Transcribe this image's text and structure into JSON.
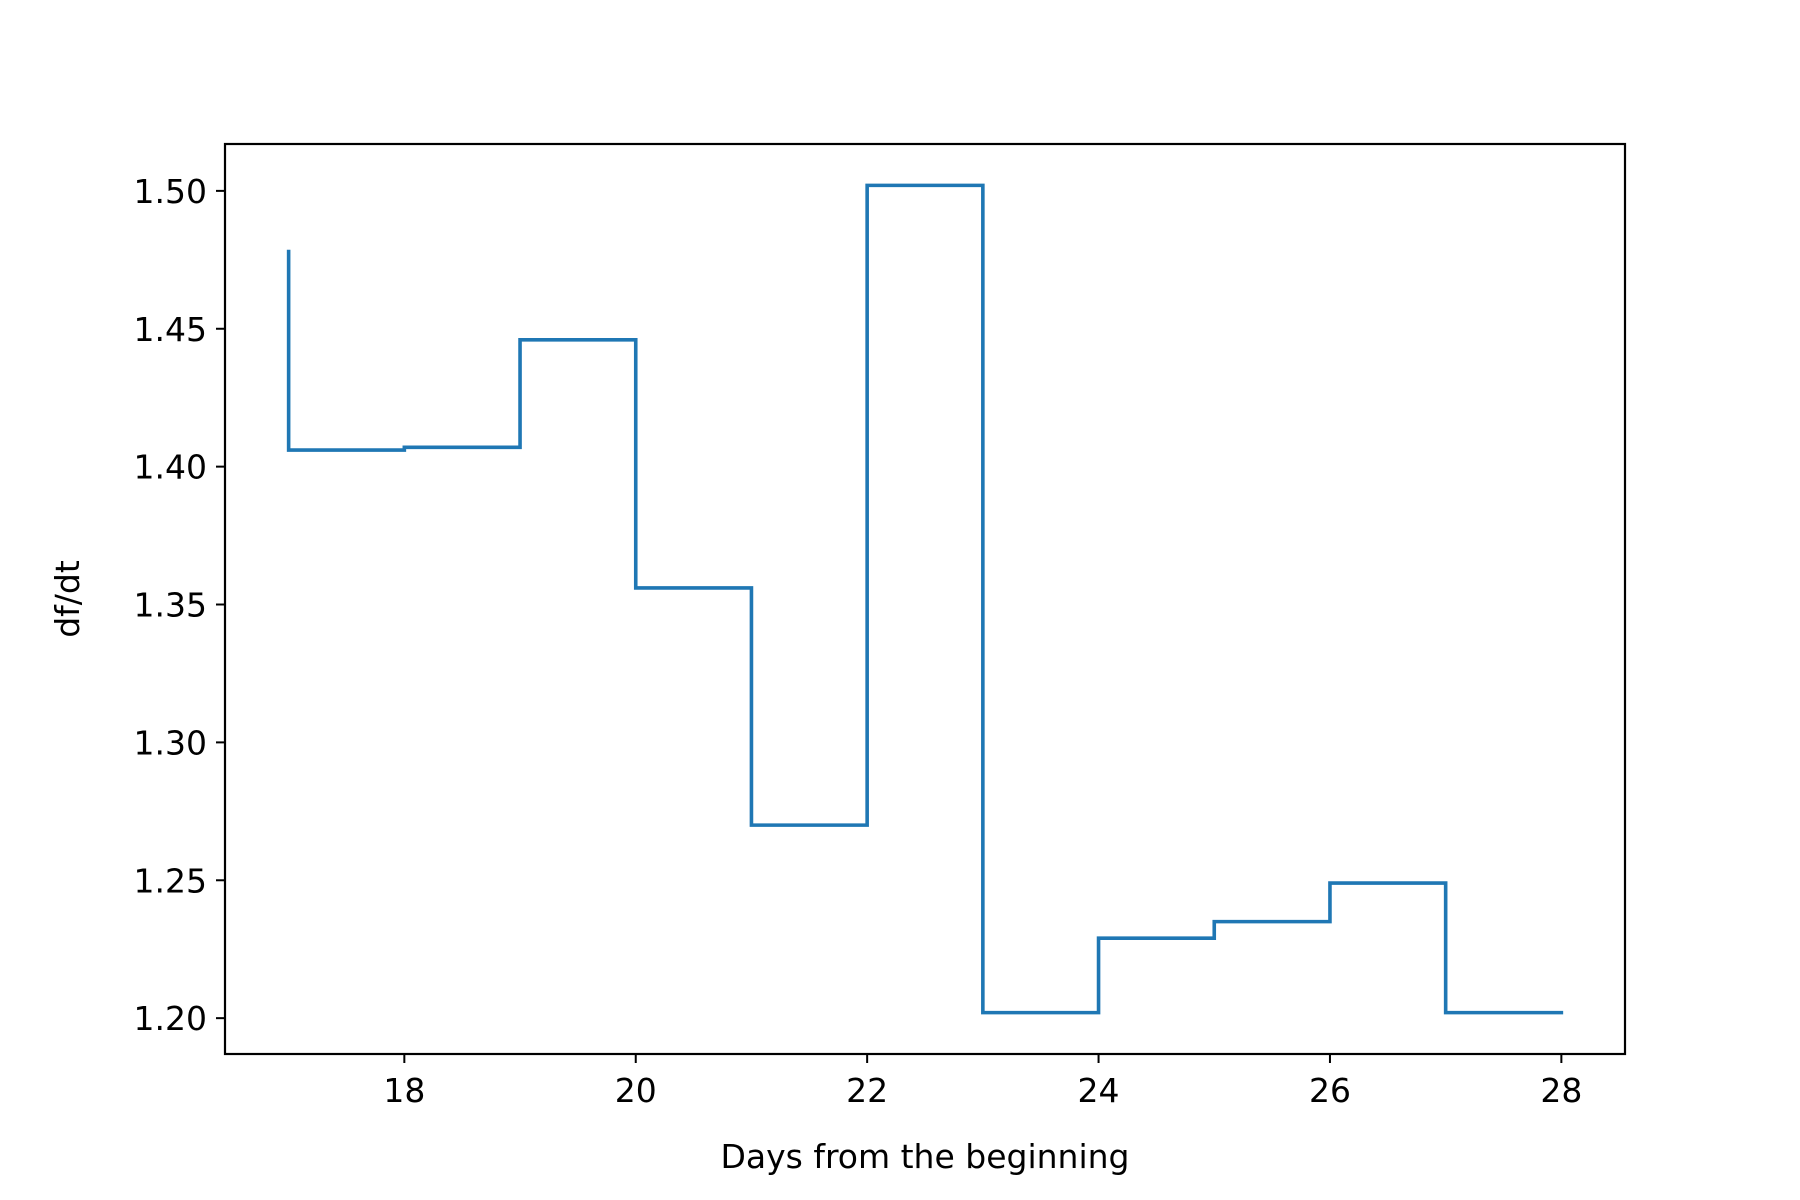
{
  "chart_data": {
    "type": "line",
    "drawstyle": "steps-post",
    "title": "",
    "xlabel": "Days from the beginning",
    "ylabel": "df/dt",
    "xlim": [
      16.45,
      28.55
    ],
    "ylim": [
      1.187,
      1.517
    ],
    "xticks": [
      18,
      20,
      22,
      24,
      26,
      28
    ],
    "xtick_labels": [
      "18",
      "20",
      "22",
      "24",
      "26",
      "28"
    ],
    "yticks": [
      1.2,
      1.25,
      1.3,
      1.35,
      1.4,
      1.45,
      1.5
    ],
    "ytick_labels": [
      "1.20",
      "1.25",
      "1.30",
      "1.35",
      "1.40",
      "1.45",
      "1.50"
    ],
    "grid": false,
    "legend": "none",
    "colors": {
      "series": "#1f77b4",
      "axes": "#000000",
      "background": "#ffffff"
    },
    "series": [
      {
        "x": [
          17,
          17,
          18,
          19,
          20,
          21,
          22,
          23,
          24,
          25,
          26,
          27,
          28
        ],
        "y": [
          1.478,
          1.406,
          1.407,
          1.446,
          1.356,
          1.27,
          1.502,
          1.202,
          1.229,
          1.235,
          1.249,
          1.202,
          1.202
        ]
      }
    ]
  }
}
